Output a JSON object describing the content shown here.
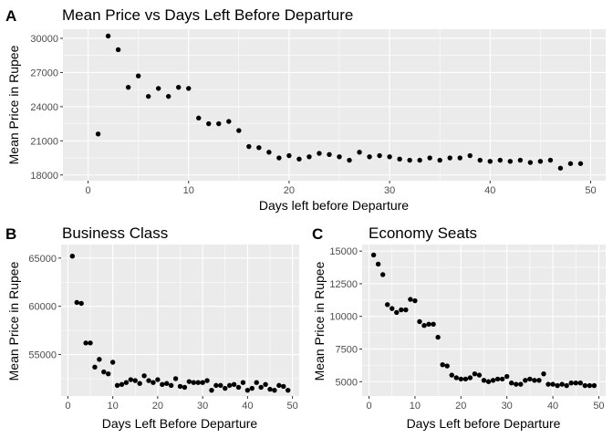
{
  "chart_data": [
    {
      "id": "A",
      "type": "scatter",
      "tag": "A",
      "title": "Mean Price vs Days Left Before Departure",
      "xlabel": "Days left before Departure",
      "ylabel": "Mean Price in Rupee",
      "xlim": [
        -2.5,
        51.5
      ],
      "ylim": [
        17500,
        30800
      ],
      "xticks": [
        0,
        10,
        20,
        30,
        40,
        50
      ],
      "yticks": [
        18000,
        21000,
        24000,
        27000,
        30000
      ],
      "grid": true,
      "x": [
        1,
        2,
        3,
        4,
        5,
        6,
        7,
        8,
        9,
        10,
        11,
        12,
        13,
        14,
        15,
        16,
        17,
        18,
        19,
        20,
        21,
        22,
        23,
        24,
        25,
        26,
        27,
        28,
        29,
        30,
        31,
        32,
        33,
        34,
        35,
        36,
        37,
        38,
        39,
        40,
        41,
        42,
        43,
        44,
        45,
        46,
        47,
        48,
        49
      ],
      "y": [
        21600,
        30200,
        29000,
        25700,
        26700,
        24900,
        25600,
        24900,
        25700,
        25600,
        23000,
        22500,
        22500,
        22700,
        21900,
        20500,
        20400,
        20000,
        19500,
        19700,
        19400,
        19600,
        19900,
        19800,
        19600,
        19300,
        20000,
        19600,
        19700,
        19600,
        19400,
        19300,
        19300,
        19500,
        19300,
        19500,
        19500,
        19700,
        19300,
        19200,
        19300,
        19200,
        19300,
        19100,
        19200,
        19300,
        18600,
        19000,
        19000
      ]
    },
    {
      "id": "B",
      "type": "scatter",
      "tag": "B",
      "title": "Business Class",
      "xlabel": "Days Left Before Departure",
      "ylabel": "Mean Price in Rupee",
      "xlim": [
        -1.5,
        51.5
      ],
      "ylim": [
        50700,
        66400
      ],
      "xticks": [
        0,
        10,
        20,
        30,
        40,
        50
      ],
      "yticks": [
        55000,
        60000,
        65000
      ],
      "grid": true,
      "x": [
        1,
        2,
        3,
        4,
        5,
        6,
        7,
        8,
        9,
        10,
        11,
        12,
        13,
        14,
        15,
        16,
        17,
        18,
        19,
        20,
        21,
        22,
        23,
        24,
        25,
        26,
        27,
        28,
        29,
        30,
        31,
        32,
        33,
        34,
        35,
        36,
        37,
        38,
        39,
        40,
        41,
        42,
        43,
        44,
        45,
        46,
        47,
        48,
        49
      ],
      "y": [
        65200,
        60400,
        60300,
        56200,
        56200,
        53700,
        54500,
        53200,
        53000,
        54200,
        51800,
        51900,
        52100,
        52400,
        52300,
        52000,
        52800,
        52300,
        52100,
        52400,
        51900,
        52000,
        51800,
        52500,
        51700,
        51600,
        52200,
        52100,
        52100,
        52100,
        52300,
        51300,
        51800,
        51800,
        51500,
        51800,
        51900,
        51600,
        52100,
        51300,
        51500,
        52100,
        51600,
        51900,
        51400,
        51300,
        51800,
        51700,
        51300
      ]
    },
    {
      "id": "C",
      "type": "scatter",
      "tag": "C",
      "title": "Economy Seats",
      "xlabel": "Days Left before Departure",
      "ylabel": "Mean Price in Rupee",
      "xlim": [
        -1.5,
        51.5
      ],
      "ylim": [
        3900,
        15500
      ],
      "xticks": [
        0,
        10,
        20,
        30,
        40,
        50
      ],
      "yticks": [
        5000,
        7500,
        10000,
        12500,
        15000
      ],
      "grid": true,
      "x": [
        1,
        2,
        3,
        4,
        5,
        6,
        7,
        8,
        9,
        10,
        11,
        12,
        13,
        14,
        15,
        16,
        17,
        18,
        19,
        20,
        21,
        22,
        23,
        24,
        25,
        26,
        27,
        28,
        29,
        30,
        31,
        32,
        33,
        34,
        35,
        36,
        37,
        38,
        39,
        40,
        41,
        42,
        43,
        44,
        45,
        46,
        47,
        48,
        49
      ],
      "y": [
        14700,
        14000,
        13200,
        10900,
        10600,
        10300,
        10500,
        10500,
        11300,
        11200,
        9600,
        9300,
        9400,
        9400,
        8400,
        6300,
        6200,
        5500,
        5300,
        5200,
        5200,
        5300,
        5600,
        5500,
        5100,
        5000,
        5100,
        5200,
        5200,
        5400,
        4900,
        4800,
        4800,
        5100,
        5200,
        5100,
        5100,
        5600,
        4800,
        4800,
        4700,
        4800,
        4700,
        4900,
        4900,
        4900,
        4700,
        4700,
        4700
      ]
    }
  ]
}
